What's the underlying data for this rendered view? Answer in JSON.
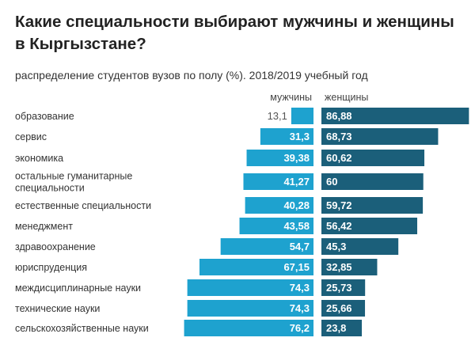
{
  "chart_data": {
    "type": "bar",
    "title": "Какие специальности выбирают мужчины и женщины в Кыргызстане?",
    "subtitle": "распределение студентов вузов по полу (%). 2018/2019 учебный год",
    "categories": [
      "образование",
      "сервис",
      "экономика",
      "остальные гуманитарные специальности",
      "естественные специальности",
      "менеджмент",
      "здравоохранение",
      "юриспруденция",
      "междисциплинарные науки",
      "технические науки",
      "сельскохозяйственные науки"
    ],
    "category_lines": [
      [
        "образование"
      ],
      [
        "сервис"
      ],
      [
        "экономика"
      ],
      [
        "остальные гуманитарные",
        "специальности"
      ],
      [
        "естественные специальности"
      ],
      [
        "менеджмент"
      ],
      [
        "здравоохранение"
      ],
      [
        "юриспруденция"
      ],
      [
        "междисциплинарные науки"
      ],
      [
        "технические науки"
      ],
      [
        "сельскохозяйственные науки"
      ]
    ],
    "series": [
      {
        "name": "мужчины",
        "color": "#1ea2cf",
        "values": [
          13.1,
          31.3,
          39.38,
          41.27,
          40.28,
          43.58,
          54.7,
          67.15,
          74.3,
          74.3,
          76.2
        ],
        "labels": [
          "13,1",
          "31,3",
          "39,38",
          "41,27",
          "40,28",
          "43,58",
          "54,7",
          "67,15",
          "74,3",
          "74,3",
          "76,2"
        ]
      },
      {
        "name": "женщины",
        "color": "#1b5f7a",
        "values": [
          86.88,
          68.73,
          60.62,
          60,
          59.72,
          56.42,
          45.3,
          32.85,
          25.73,
          25.66,
          23.8
        ],
        "labels": [
          "86,88",
          "68,73",
          "60,62",
          "60",
          "59,72",
          "56,42",
          "45,3",
          "32,85",
          "25,73",
          "25,66",
          "23,8"
        ]
      }
    ],
    "xlabel": "",
    "ylabel": "",
    "xlim": [
      0,
      100
    ]
  }
}
